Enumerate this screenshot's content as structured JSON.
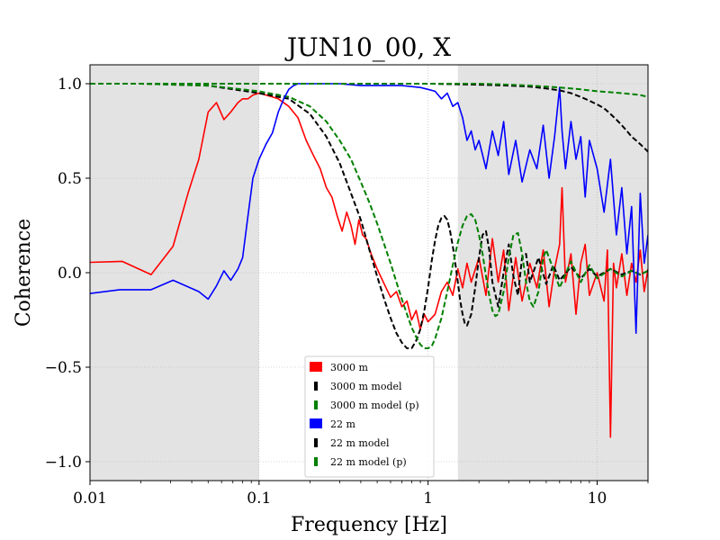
{
  "chart_data": {
    "type": "line",
    "title": "JUN10_00, X",
    "xlabel": "Frequency [Hz]",
    "ylabel": "Coherence",
    "xscale": "log",
    "xlim": [
      0.01,
      20
    ],
    "ylim": [
      -1.1,
      1.1
    ],
    "xticks": [
      {
        "value": 0.01,
        "label": "0.01"
      },
      {
        "value": 0.1,
        "label": "0.1"
      },
      {
        "value": 1,
        "label": "1"
      },
      {
        "value": 10,
        "label": "10"
      }
    ],
    "yticks": [
      {
        "value": -1.0,
        "label": "−1.0"
      },
      {
        "value": -0.5,
        "label": "−0.5"
      },
      {
        "value": 0.0,
        "label": "0.0"
      },
      {
        "value": 0.5,
        "label": "0.5"
      },
      {
        "value": 1.0,
        "label": "1.0"
      }
    ],
    "grid": true,
    "legend_position": "bottom-center",
    "shaded_regions": [
      {
        "x_from": 0.01,
        "x_to": 0.1,
        "color": "#e3e3e3"
      },
      {
        "x_from": 1.5,
        "x_to": 20,
        "color": "#e3e3e3"
      }
    ],
    "series": [
      {
        "name": "3000 m",
        "color": "#ff0000",
        "style": "solid",
        "legend_marker": "square",
        "x": [
          0.01,
          0.0155,
          0.023,
          0.031,
          0.038,
          0.044,
          0.05,
          0.056,
          0.062,
          0.068,
          0.075,
          0.08,
          0.086,
          0.092,
          0.1,
          0.11,
          0.12,
          0.13,
          0.15,
          0.17,
          0.19,
          0.21,
          0.23,
          0.25,
          0.27,
          0.29,
          0.31,
          0.33,
          0.35,
          0.37,
          0.39,
          0.41,
          0.43,
          0.46,
          0.5,
          0.55,
          0.6,
          0.65,
          0.7,
          0.75,
          0.8,
          0.85,
          0.9,
          0.95,
          1.0,
          1.1,
          1.2,
          1.3,
          1.4,
          1.5,
          1.6,
          1.7,
          1.8,
          2.0,
          2.2,
          2.4,
          2.6,
          2.8,
          3.0,
          3.3,
          3.6,
          4.0,
          4.4,
          4.8,
          5.2,
          5.6,
          6.0,
          6.2,
          6.5,
          7.0,
          7.5,
          8.0,
          8.5,
          9.0,
          10.0,
          11.0,
          11.5,
          12.0,
          12.5,
          13.0,
          14.0,
          15.0,
          16.0,
          17.0,
          18.0,
          19.0,
          20.0
        ],
        "y": [
          0.055,
          0.06,
          -0.01,
          0.14,
          0.42,
          0.6,
          0.85,
          0.9,
          0.81,
          0.85,
          0.9,
          0.92,
          0.92,
          0.94,
          0.95,
          0.94,
          0.93,
          0.92,
          0.88,
          0.82,
          0.7,
          0.62,
          0.55,
          0.45,
          0.4,
          0.3,
          0.22,
          0.32,
          0.25,
          0.15,
          0.28,
          0.2,
          0.18,
          0.1,
          0.02,
          -0.06,
          -0.13,
          -0.1,
          -0.18,
          -0.15,
          -0.25,
          -0.2,
          -0.3,
          -0.22,
          -0.26,
          -0.22,
          -0.1,
          -0.05,
          -0.12,
          0.02,
          -0.08,
          0.05,
          -0.05,
          0.08,
          -0.12,
          0.18,
          -0.05,
          0.12,
          -0.2,
          0.08,
          -0.15,
          0.05,
          -0.08,
          0.12,
          -0.18,
          0.02,
          0.15,
          0.45,
          -0.05,
          0.1,
          -0.22,
          0.05,
          0.15,
          -0.12,
          0.0,
          -0.15,
          0.12,
          -0.87,
          0.05,
          -0.08,
          0.1,
          -0.12,
          0.05,
          -0.05,
          0.12,
          -0.1,
          0.02
        ]
      },
      {
        "name": "3000 m model",
        "color": "#000000",
        "style": "dashed",
        "legend_marker": "bar",
        "x": [
          0.01,
          0.02,
          0.05,
          0.1,
          0.15,
          0.2,
          0.25,
          0.3,
          0.35,
          0.4,
          0.45,
          0.5,
          0.55,
          0.6,
          0.65,
          0.7,
          0.75,
          0.8,
          0.85,
          0.9,
          0.95,
          1.0,
          1.05,
          1.1,
          1.15,
          1.2,
          1.25,
          1.3,
          1.35,
          1.4,
          1.45,
          1.5,
          1.55,
          1.6,
          1.65,
          1.7,
          1.8,
          1.9,
          2.0,
          2.1,
          2.2,
          2.3,
          2.4,
          2.6,
          2.8,
          3.0,
          3.2,
          3.4,
          3.6,
          3.8,
          4.0,
          4.5,
          5.0,
          5.5,
          6.0,
          7.0,
          8.0,
          9.0,
          10.0,
          12.0,
          14.0,
          16.0,
          18.0,
          20.0
        ],
        "y": [
          1.0,
          1.0,
          0.99,
          0.95,
          0.92,
          0.84,
          0.72,
          0.58,
          0.42,
          0.28,
          0.12,
          -0.02,
          -0.14,
          -0.24,
          -0.32,
          -0.37,
          -0.4,
          -0.4,
          -0.36,
          -0.3,
          -0.2,
          -0.08,
          0.06,
          0.17,
          0.25,
          0.29,
          0.3,
          0.28,
          0.22,
          0.14,
          0.05,
          -0.05,
          -0.15,
          -0.22,
          -0.27,
          -0.28,
          -0.22,
          -0.08,
          0.08,
          0.2,
          0.22,
          0.12,
          -0.05,
          -0.18,
          0.0,
          0.15,
          -0.02,
          -0.12,
          0.08,
          0.1,
          -0.05,
          0.08,
          -0.06,
          0.04,
          -0.04,
          0.03,
          -0.03,
          0.02,
          -0.02,
          0.02,
          -0.01,
          0.01,
          -0.01,
          0.01
        ]
      },
      {
        "name": "3000 m model (p)",
        "color": "#008000",
        "style": "dashed",
        "legend_marker": "bar",
        "x": [
          0.01,
          0.02,
          0.05,
          0.1,
          0.15,
          0.2,
          0.25,
          0.3,
          0.35,
          0.4,
          0.45,
          0.5,
          0.55,
          0.6,
          0.65,
          0.7,
          0.75,
          0.8,
          0.85,
          0.9,
          0.95,
          1.0,
          1.05,
          1.1,
          1.2,
          1.3,
          1.4,
          1.5,
          1.6,
          1.7,
          1.8,
          1.9,
          2.0,
          2.1,
          2.2,
          2.3,
          2.4,
          2.5,
          2.6,
          2.8,
          3.0,
          3.2,
          3.4,
          3.6,
          3.8,
          4.0,
          4.2,
          4.5,
          4.8,
          5.0,
          5.5,
          6.0,
          7.0,
          8.0,
          9.0,
          10.0,
          12.0,
          14.0,
          16.0,
          18.0,
          20.0
        ],
        "y": [
          1.0,
          1.0,
          0.99,
          0.96,
          0.93,
          0.88,
          0.8,
          0.7,
          0.6,
          0.48,
          0.37,
          0.26,
          0.15,
          0.05,
          -0.05,
          -0.14,
          -0.22,
          -0.29,
          -0.34,
          -0.38,
          -0.4,
          -0.4,
          -0.39,
          -0.35,
          -0.24,
          -0.1,
          0.04,
          0.16,
          0.25,
          0.3,
          0.31,
          0.28,
          0.2,
          0.1,
          -0.02,
          -0.12,
          -0.2,
          -0.23,
          -0.22,
          -0.1,
          0.08,
          0.2,
          0.21,
          0.1,
          -0.05,
          -0.15,
          -0.18,
          -0.1,
          0.08,
          0.12,
          0.02,
          -0.08,
          0.06,
          -0.05,
          0.04,
          -0.03,
          0.02,
          -0.02,
          0.01,
          -0.01,
          0.01
        ]
      },
      {
        "name": "22 m",
        "color": "#0000ff",
        "style": "solid",
        "legend_marker": "square",
        "x": [
          0.01,
          0.015,
          0.023,
          0.031,
          0.044,
          0.05,
          0.056,
          0.062,
          0.068,
          0.075,
          0.08,
          0.086,
          0.092,
          0.1,
          0.11,
          0.12,
          0.13,
          0.14,
          0.15,
          0.16,
          0.17,
          0.18,
          0.19,
          0.2,
          0.25,
          0.3,
          0.4,
          0.5,
          0.7,
          0.9,
          1.0,
          1.1,
          1.2,
          1.3,
          1.4,
          1.5,
          1.6,
          1.7,
          1.8,
          1.9,
          2.0,
          2.2,
          2.4,
          2.6,
          2.8,
          3.0,
          3.3,
          3.6,
          4.0,
          4.4,
          4.8,
          5.2,
          5.6,
          6.0,
          6.2,
          6.5,
          7.0,
          7.5,
          8.0,
          8.5,
          9.0,
          10.0,
          11.0,
          12.0,
          13.0,
          14.0,
          15.0,
          16.0,
          17.0,
          18.0,
          19.0,
          20.0
        ],
        "y": [
          -0.11,
          -0.09,
          -0.09,
          -0.04,
          -0.1,
          -0.14,
          -0.07,
          0.01,
          -0.04,
          0.02,
          0.08,
          0.3,
          0.5,
          0.6,
          0.68,
          0.74,
          0.85,
          0.92,
          0.97,
          0.99,
          1.0,
          1.0,
          1.0,
          1.0,
          1.0,
          1.0,
          0.99,
          0.99,
          0.99,
          0.98,
          0.97,
          0.96,
          0.92,
          0.95,
          0.88,
          0.9,
          0.82,
          0.7,
          0.75,
          0.65,
          0.7,
          0.55,
          0.75,
          0.62,
          0.8,
          0.52,
          0.7,
          0.48,
          0.65,
          0.55,
          0.78,
          0.5,
          0.72,
          0.98,
          0.75,
          0.55,
          0.8,
          0.6,
          0.72,
          0.4,
          0.7,
          0.55,
          0.32,
          0.6,
          0.2,
          0.45,
          0.1,
          0.35,
          -0.32,
          0.42,
          0.05,
          0.2
        ]
      },
      {
        "name": "22 m model",
        "color": "#000000",
        "style": "dashed",
        "legend_marker": "bar",
        "x": [
          0.01,
          0.1,
          0.5,
          1.0,
          2.0,
          3.0,
          4.0,
          5.0,
          6.0,
          7.0,
          8.0,
          9.0,
          10.0,
          11.0,
          12.0,
          13.0,
          14.0,
          15.0,
          16.0,
          17.0,
          18.0,
          19.0,
          20.0
        ],
        "y": [
          1.0,
          1.0,
          1.0,
          1.0,
          0.995,
          0.99,
          0.985,
          0.975,
          0.965,
          0.95,
          0.93,
          0.91,
          0.89,
          0.87,
          0.84,
          0.81,
          0.78,
          0.75,
          0.72,
          0.7,
          0.68,
          0.66,
          0.64
        ]
      },
      {
        "name": "22 m model (p)",
        "color": "#008000",
        "style": "dashed",
        "legend_marker": "bar",
        "x": [
          0.01,
          0.1,
          0.5,
          1.0,
          2.0,
          3.0,
          4.0,
          5.0,
          6.0,
          7.0,
          8.0,
          10.0,
          12.0,
          14.0,
          16.0,
          18.0,
          20.0
        ],
        "y": [
          1.0,
          1.0,
          1.0,
          1.0,
          1.0,
          0.995,
          0.99,
          0.985,
          0.98,
          0.975,
          0.97,
          0.96,
          0.955,
          0.95,
          0.945,
          0.94,
          0.93
        ]
      }
    ]
  }
}
